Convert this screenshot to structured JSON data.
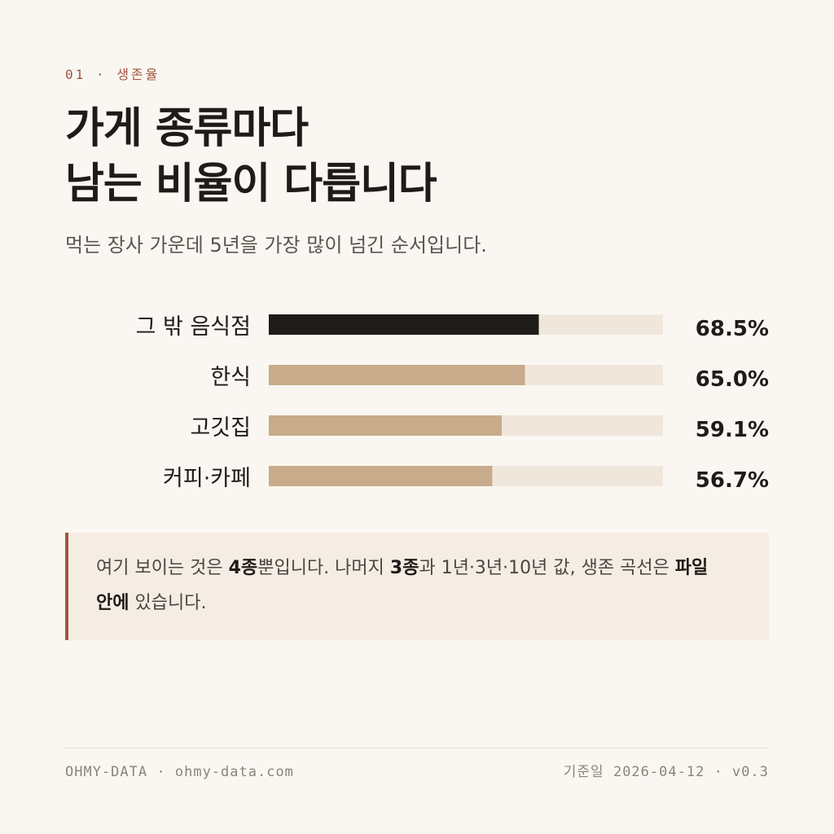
{
  "section": {
    "number": "01",
    "separator": "·",
    "label": "생존율"
  },
  "title": {
    "line1": "가게 종류마다",
    "line2": "남는 비율이 다릅니다"
  },
  "subtitle": "먹는 장사 가운데 5년을 가장 많이 넘긴 순서입니다.",
  "chart_data": {
    "type": "bar",
    "orientation": "horizontal",
    "categories": [
      "그 밖 음식점",
      "한식",
      "고깃집",
      "커피·카페"
    ],
    "values": [
      68.5,
      65.0,
      59.1,
      56.7
    ],
    "value_labels": [
      "68.5%",
      "65.0%",
      "59.1%",
      "56.7%"
    ],
    "xlim": [
      0,
      100
    ],
    "grid": false,
    "legend": "none",
    "colors": {
      "highlight": "#1f1b18",
      "bar": "#c8ab8a",
      "track": "#f0e7dc"
    }
  },
  "note": {
    "part1": "여기 보이는 것은 ",
    "strong1": "4종",
    "part2": "뿐입니다. 나머지 ",
    "strong2": "3종",
    "part3": "과 1년·3년·10년 값, 생존 곡선은 ",
    "strong3": "파일 안에",
    "part4": " 있습니다."
  },
  "footer": {
    "brand": "OHMY-DATA",
    "site": "ohmy-data.com",
    "date_label": "기준일",
    "date": "2026-04-12",
    "version": "v0.3"
  },
  "colors": {
    "background": "#faf7f2",
    "accent": "#a4553d",
    "text": "#1f1b18",
    "muted": "#5b5450",
    "note_background": "#f5ede4"
  }
}
